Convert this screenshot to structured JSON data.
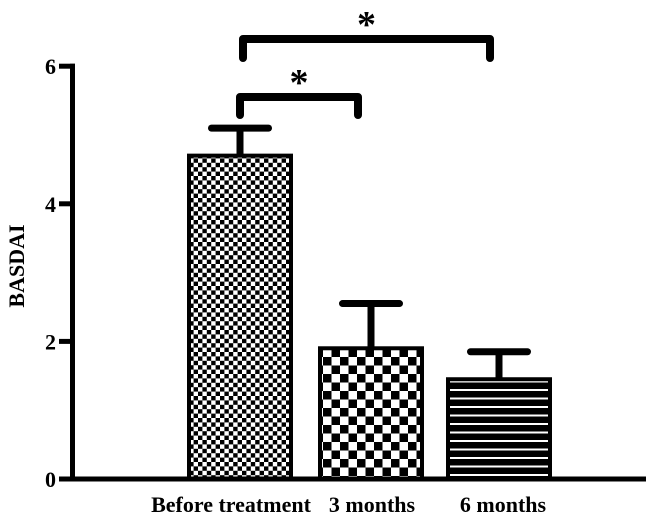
{
  "figure": {
    "background": "#ffffff",
    "ink": "#000000"
  },
  "chart_data": {
    "type": "bar",
    "title": "",
    "xlabel": "",
    "ylabel": "BASDAI",
    "ylim": [
      0,
      6
    ],
    "yticks": [
      0,
      2,
      4,
      6
    ],
    "grid": false,
    "legend": "none",
    "categories": [
      "Before treatment",
      "3 months",
      "6 months"
    ],
    "values": [
      4.7,
      1.9,
      1.45
    ],
    "errors_upper": [
      0.4,
      0.65,
      0.4
    ],
    "error_caps": true,
    "bar_fill_patterns": [
      "fine-checkerboard",
      "coarse-checkerboard",
      "horizontal-stripes"
    ],
    "bar_fill_color": "#000000",
    "bar_background": "#ffffff",
    "significance_brackets": [
      {
        "from": 0,
        "to": 1,
        "label": "*"
      },
      {
        "from": 0,
        "to": 2,
        "label": "*"
      }
    ]
  }
}
